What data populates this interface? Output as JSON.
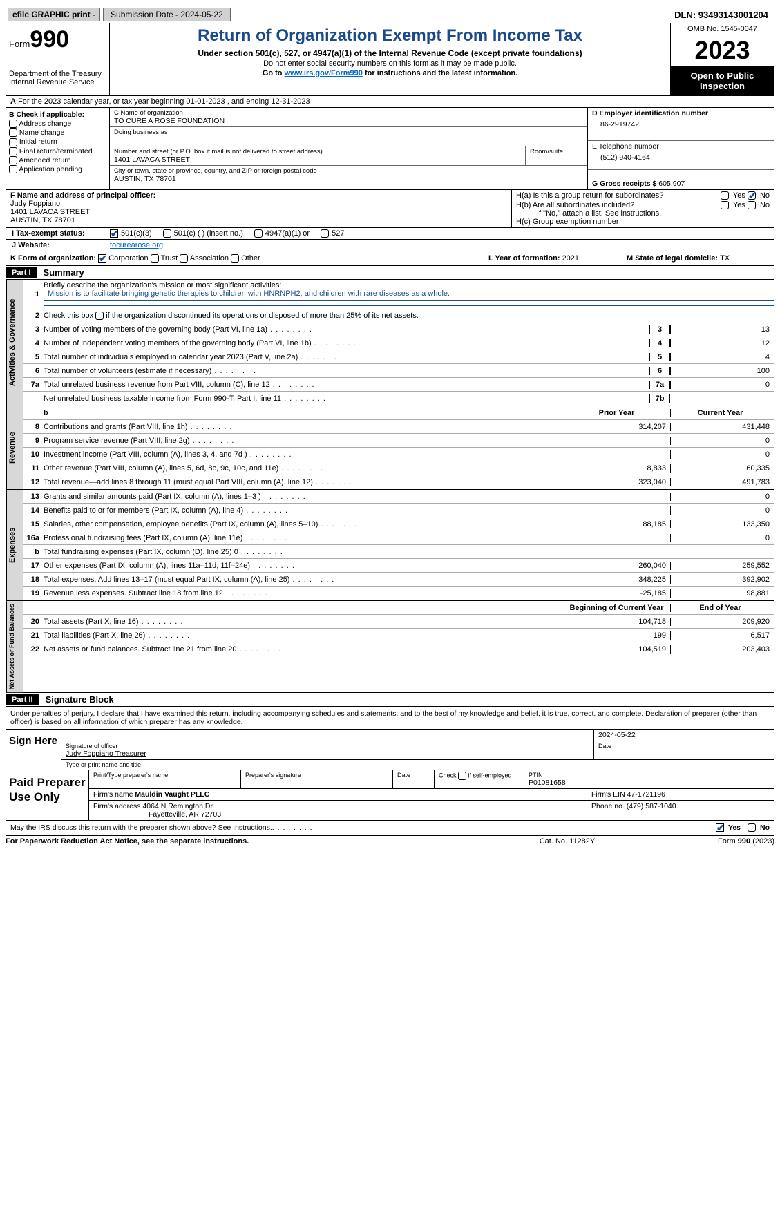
{
  "topbar": {
    "efile": "efile GRAPHIC print -",
    "submission_label": "Submission Date - 2024-05-22",
    "dln_label": "DLN: 93493143001204"
  },
  "header": {
    "form_label": "Form",
    "form_number": "990",
    "title": "Return of Organization Exempt From Income Tax",
    "subtitle": "Under section 501(c), 527, or 4947(a)(1) of the Internal Revenue Code (except private foundations)",
    "line1": "Do not enter social security numbers on this form as it may be made public.",
    "line2_pre": "Go to ",
    "line2_link": "www.irs.gov/Form990",
    "line2_post": " for instructions and the latest information.",
    "dept": "Department of the Treasury",
    "irs": "Internal Revenue Service",
    "omb": "OMB No. 1545-0047",
    "year": "2023",
    "open": "Open to Public Inspection"
  },
  "rowA": {
    "label_a": "A",
    "text": "For the 2023 calendar year, or tax year beginning 01-01-2023    , and ending 12-31-2023"
  },
  "colB": {
    "hdr": "B Check if applicable:",
    "items": [
      "Address change",
      "Name change",
      "Initial return",
      "Final return/terminated",
      "Amended return",
      "Application pending"
    ]
  },
  "colC": {
    "name_lbl": "C Name of organization",
    "name": "TO CURE A ROSE FOUNDATION",
    "dba_lbl": "Doing business as",
    "addr_lbl": "Number and street (or P.O. box if mail is not delivered to street address)",
    "room_lbl": "Room/suite",
    "addr": "1401 LAVACA STREET",
    "city_lbl": "City or town, state or province, country, and ZIP or foreign postal code",
    "city": "AUSTIN, TX  78701"
  },
  "colD": {
    "ein_lbl": "D Employer identification number",
    "ein": "86-2919742",
    "tel_lbl": "E Telephone number",
    "tel": "(512) 940-4164",
    "gross_lbl": "G Gross receipts $ ",
    "gross": "605,907"
  },
  "rowF": {
    "f_lbl": "F  Name and address of principal officer:",
    "f_name": "Judy Foppiano",
    "f_addr1": "1401 LAVACA STREET",
    "f_addr2": "AUSTIN, TX  78701",
    "ha_lbl": "H(a)  Is this a group return for subordinates?",
    "hb_lbl": "H(b)  Are all subordinates included?",
    "hb_note": "If \"No,\" attach a list. See instructions.",
    "hc_lbl": "H(c)  Group exemption number ",
    "yes": "Yes",
    "no": "No"
  },
  "rowI": {
    "lbl": "I   Tax-exempt status:",
    "o1": "501(c)(3)",
    "o2": "501(c) (  ) (insert no.)",
    "o3": "4947(a)(1) or",
    "o4": "527"
  },
  "rowJ": {
    "lbl": "J   Website: ",
    "val": "tocurearose.org"
  },
  "rowK": {
    "lbl": "K Form of organization:",
    "o1": "Corporation",
    "o2": "Trust",
    "o3": "Association",
    "o4": "Other",
    "l_lbl": "L Year of formation: ",
    "l_val": "2021",
    "m_lbl": "M State of legal domicile: ",
    "m_val": "TX"
  },
  "partI": {
    "hdr": "Part I",
    "title": "Summary",
    "q1_lbl": "Briefly describe the organization's mission or most significant activities:",
    "q1_mission": "Mission is to facilitate bringing genetic therapies to children with HNRNPH2, and children with rare diseases as a whole.",
    "q2": "Check this box       if the organization discontinued its operations or disposed of more than 25% of its net assets.",
    "vlabels": {
      "gov": "Activities & Governance",
      "rev": "Revenue",
      "exp": "Expenses",
      "net": "Net Assets or Fund Balances"
    },
    "col_prior": "Prior Year",
    "col_curr": "Current Year",
    "col_beg": "Beginning of Current Year",
    "col_end": "End of Year",
    "lines_gov": [
      {
        "n": "3",
        "t": "Number of voting members of the governing body (Part VI, line 1a)",
        "b": "3",
        "v": "13"
      },
      {
        "n": "4",
        "t": "Number of independent voting members of the governing body (Part VI, line 1b)",
        "b": "4",
        "v": "12"
      },
      {
        "n": "5",
        "t": "Total number of individuals employed in calendar year 2023 (Part V, line 2a)",
        "b": "5",
        "v": "4"
      },
      {
        "n": "6",
        "t": "Total number of volunteers (estimate if necessary)",
        "b": "6",
        "v": "100"
      },
      {
        "n": "7a",
        "t": "Total unrelated business revenue from Part VIII, column (C), line 12",
        "b": "7a",
        "v": "0"
      },
      {
        "n": "",
        "t": "Net unrelated business taxable income from Form 990-T, Part I, line 11",
        "b": "7b",
        "v": ""
      }
    ],
    "lines_rev": [
      {
        "n": "8",
        "t": "Contributions and grants (Part VIII, line 1h)",
        "p": "314,207",
        "c": "431,448"
      },
      {
        "n": "9",
        "t": "Program service revenue (Part VIII, line 2g)",
        "p": "",
        "c": "0"
      },
      {
        "n": "10",
        "t": "Investment income (Part VIII, column (A), lines 3, 4, and 7d )",
        "p": "",
        "c": "0"
      },
      {
        "n": "11",
        "t": "Other revenue (Part VIII, column (A), lines 5, 6d, 8c, 9c, 10c, and 11e)",
        "p": "8,833",
        "c": "60,335"
      },
      {
        "n": "12",
        "t": "Total revenue—add lines 8 through 11 (must equal Part VIII, column (A), line 12)",
        "p": "323,040",
        "c": "491,783"
      }
    ],
    "lines_exp": [
      {
        "n": "13",
        "t": "Grants and similar amounts paid (Part IX, column (A), lines 1–3 )",
        "p": "",
        "c": "0"
      },
      {
        "n": "14",
        "t": "Benefits paid to or for members (Part IX, column (A), line 4)",
        "p": "",
        "c": "0"
      },
      {
        "n": "15",
        "t": "Salaries, other compensation, employee benefits (Part IX, column (A), lines 5–10)",
        "p": "88,185",
        "c": "133,350"
      },
      {
        "n": "16a",
        "t": "Professional fundraising fees (Part IX, column (A), line 11e)",
        "p": "",
        "c": "0"
      },
      {
        "n": "b",
        "t": "Total fundraising expenses (Part IX, column (D), line 25) 0",
        "p": "SHADE",
        "c": "SHADE"
      },
      {
        "n": "17",
        "t": "Other expenses (Part IX, column (A), lines 11a–11d, 11f–24e)",
        "p": "260,040",
        "c": "259,552"
      },
      {
        "n": "18",
        "t": "Total expenses. Add lines 13–17 (must equal Part IX, column (A), line 25)",
        "p": "348,225",
        "c": "392,902"
      },
      {
        "n": "19",
        "t": "Revenue less expenses. Subtract line 18 from line 12",
        "p": "-25,185",
        "c": "98,881"
      }
    ],
    "lines_net": [
      {
        "n": "20",
        "t": "Total assets (Part X, line 16)",
        "p": "104,718",
        "c": "209,920"
      },
      {
        "n": "21",
        "t": "Total liabilities (Part X, line 26)",
        "p": "199",
        "c": "6,517"
      },
      {
        "n": "22",
        "t": "Net assets or fund balances. Subtract line 21 from line 20",
        "p": "104,519",
        "c": "203,403"
      }
    ]
  },
  "partII": {
    "hdr": "Part II",
    "title": "Signature Block",
    "declaration": "Under penalties of perjury, I declare that I have examined this return, including accompanying schedules and statements, and to the best of my knowledge and belief, it is true, correct, and complete. Declaration of preparer (other than officer) is based on all information of which preparer has any knowledge.",
    "sign_here": "Sign Here",
    "sig_date": "2024-05-22",
    "sig_officer_lbl": "Signature of officer",
    "sig_officer": "Judy Foppiano  Treasurer",
    "sig_type_lbl": "Type or print name and title",
    "date_lbl": "Date",
    "paid": "Paid Preparer Use Only",
    "prep_name_lbl": "Print/Type preparer's name",
    "prep_sig_lbl": "Preparer's signature",
    "prep_date_lbl": "Date",
    "prep_check_lbl": "Check        if self-employed",
    "ptin_lbl": "PTIN",
    "ptin": "P01081658",
    "firm_name_lbl": "Firm's name   ",
    "firm_name": "Mauldin Vaught PLLC",
    "firm_ein_lbl": "Firm's EIN  ",
    "firm_ein": "47-1721196",
    "firm_addr_lbl": "Firm's address ",
    "firm_addr1": "4064 N Remington Dr",
    "firm_addr2": "Fayetteville, AR  72703",
    "phone_lbl": "Phone no. ",
    "phone": "(479) 587-1040",
    "discuss": "May the IRS discuss this return with the preparer shown above? See Instructions.",
    "yes": "Yes",
    "no": "No"
  },
  "footer": {
    "left": "For Paperwork Reduction Act Notice, see the separate instructions.",
    "mid": "Cat. No. 11282Y",
    "right": "Form 990 (2023)"
  }
}
